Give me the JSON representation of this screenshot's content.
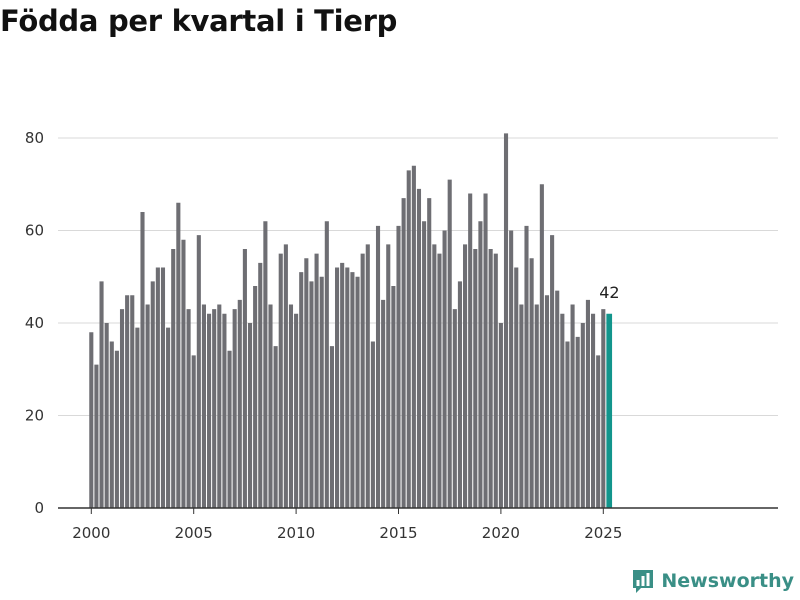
{
  "title": "Födda per kvartal i Tierp",
  "brand": {
    "name": "Newsworthy",
    "icon": "newsworthy-logo-icon",
    "color": "#3a8f86"
  },
  "colors": {
    "bar": "#6e6e73",
    "highlight": "#12958c",
    "grid": "#d9d9d9",
    "axis": "#333333"
  },
  "chart_data": {
    "type": "bar",
    "title": "Födda per kvartal i Tierp",
    "xlabel": "",
    "ylabel": "",
    "ylim": [
      0,
      80
    ],
    "yticks": [
      0,
      20,
      40,
      60,
      80
    ],
    "xticks": [
      2000,
      2005,
      2010,
      2015,
      2020,
      2025
    ],
    "grid": true,
    "start": {
      "year": 2000,
      "quarter": 1
    },
    "categories": [
      "2000 Q1",
      "2000 Q2",
      "2000 Q3",
      "2000 Q4",
      "2001 Q1",
      "2001 Q2",
      "2001 Q3",
      "2001 Q4",
      "2002 Q1",
      "2002 Q2",
      "2002 Q3",
      "2002 Q4",
      "2003 Q1",
      "2003 Q2",
      "2003 Q3",
      "2003 Q4",
      "2004 Q1",
      "2004 Q2",
      "2004 Q3",
      "2004 Q4",
      "2005 Q1",
      "2005 Q2",
      "2005 Q3",
      "2005 Q4",
      "2006 Q1",
      "2006 Q2",
      "2006 Q3",
      "2006 Q4",
      "2007 Q1",
      "2007 Q2",
      "2007 Q3",
      "2007 Q4",
      "2008 Q1",
      "2008 Q2",
      "2008 Q3",
      "2008 Q4",
      "2009 Q1",
      "2009 Q2",
      "2009 Q3",
      "2009 Q4",
      "2010 Q1",
      "2010 Q2",
      "2010 Q3",
      "2010 Q4",
      "2011 Q1",
      "2011 Q2",
      "2011 Q3",
      "2011 Q4",
      "2012 Q1",
      "2012 Q2",
      "2012 Q3",
      "2012 Q4",
      "2013 Q1",
      "2013 Q2",
      "2013 Q3",
      "2013 Q4",
      "2014 Q1",
      "2014 Q2",
      "2014 Q3",
      "2014 Q4",
      "2015 Q1",
      "2015 Q2",
      "2015 Q3",
      "2015 Q4",
      "2016 Q1",
      "2016 Q2",
      "2016 Q3",
      "2016 Q4",
      "2017 Q1",
      "2017 Q2",
      "2017 Q3",
      "2017 Q4",
      "2018 Q1",
      "2018 Q2",
      "2018 Q3",
      "2018 Q4",
      "2019 Q1",
      "2019 Q2",
      "2019 Q3",
      "2019 Q4",
      "2020 Q1",
      "2020 Q2",
      "2020 Q3",
      "2020 Q4",
      "2021 Q1",
      "2021 Q2",
      "2021 Q3",
      "2021 Q4",
      "2022 Q1",
      "2022 Q2",
      "2022 Q3",
      "2022 Q4",
      "2023 Q1",
      "2023 Q2",
      "2023 Q3",
      "2023 Q4",
      "2024 Q1",
      "2024 Q2",
      "2024 Q3",
      "2024 Q4",
      "2025 Q1",
      "2025 Q2"
    ],
    "values": [
      38,
      31,
      49,
      40,
      36,
      34,
      43,
      46,
      46,
      39,
      64,
      44,
      49,
      52,
      52,
      39,
      56,
      66,
      58,
      43,
      33,
      59,
      44,
      42,
      43,
      44,
      42,
      34,
      43,
      45,
      56,
      40,
      48,
      53,
      62,
      44,
      35,
      55,
      57,
      44,
      42,
      51,
      54,
      49,
      55,
      50,
      62,
      35,
      52,
      53,
      52,
      51,
      50,
      55,
      57,
      36,
      61,
      45,
      57,
      48,
      61,
      67,
      73,
      74,
      69,
      62,
      67,
      57,
      55,
      60,
      71,
      43,
      49,
      57,
      68,
      56,
      62,
      68,
      56,
      55,
      40,
      81,
      60,
      52,
      44,
      61,
      54,
      44,
      70,
      46,
      59,
      47,
      42,
      36,
      44,
      37,
      40,
      45,
      42,
      33,
      43,
      42
    ],
    "highlight_last": true,
    "last_label": "42"
  }
}
